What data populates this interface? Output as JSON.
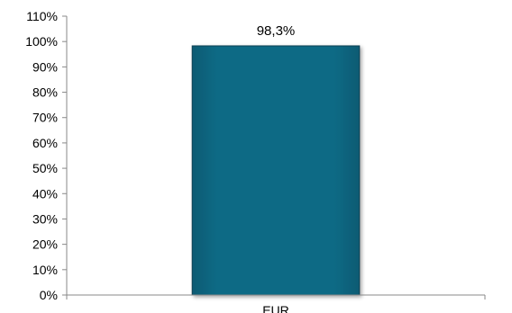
{
  "chart_data": {
    "type": "bar",
    "categories": [
      "EUR"
    ],
    "values": [
      98.3
    ],
    "data_labels": [
      "98,3%"
    ],
    "y_ticks": [
      "0%",
      "10%",
      "20%",
      "30%",
      "40%",
      "50%",
      "60%",
      "70%",
      "80%",
      "90%",
      "100%",
      "110%"
    ],
    "ylim": [
      0,
      110
    ],
    "title": "",
    "xlabel": "",
    "ylabel": "",
    "grid": false,
    "bar_color": "#0a6a85",
    "bar_edge_color": "#0c3f52"
  }
}
